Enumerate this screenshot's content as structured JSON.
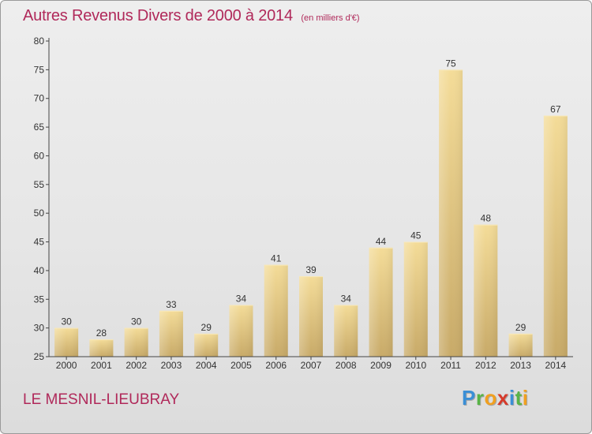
{
  "header": {
    "title": "Autres Revenus Divers de 2000 à 2014",
    "subtitle": "(en milliers d'€)"
  },
  "footer": {
    "town": "LE MESNIL-LIEUBRAY",
    "brand_letters": [
      {
        "ch": "P",
        "color": "#3a8fd6"
      },
      {
        "ch": "r",
        "color": "#58b447"
      },
      {
        "ch": "o",
        "color": "#f0a020"
      },
      {
        "ch": "x",
        "color": "#d63a2a"
      },
      {
        "ch": "i",
        "color": "#3a8fd6"
      },
      {
        "ch": "t",
        "color": "#58b447"
      },
      {
        "ch": "i",
        "color": "#f0a020"
      }
    ]
  },
  "colors": {
    "title": "#b0295a",
    "bar_light": "#f4dc98",
    "bar_dark": "#c8aa68",
    "axis": "#444444",
    "grid": "#bbbbbb"
  },
  "chart_data": {
    "type": "bar",
    "categories": [
      "2000",
      "2001",
      "2002",
      "2003",
      "2004",
      "2005",
      "2006",
      "2007",
      "2008",
      "2009",
      "2010",
      "2011",
      "2012",
      "2013",
      "2014"
    ],
    "values": [
      30,
      28,
      30,
      33,
      29,
      34,
      41,
      39,
      34,
      44,
      45,
      75,
      48,
      29,
      67
    ],
    "ylim": [
      25,
      80
    ],
    "yticks": [
      25,
      30,
      35,
      40,
      45,
      50,
      55,
      60,
      65,
      70,
      75,
      80
    ],
    "data_labels": true,
    "grid": false
  }
}
